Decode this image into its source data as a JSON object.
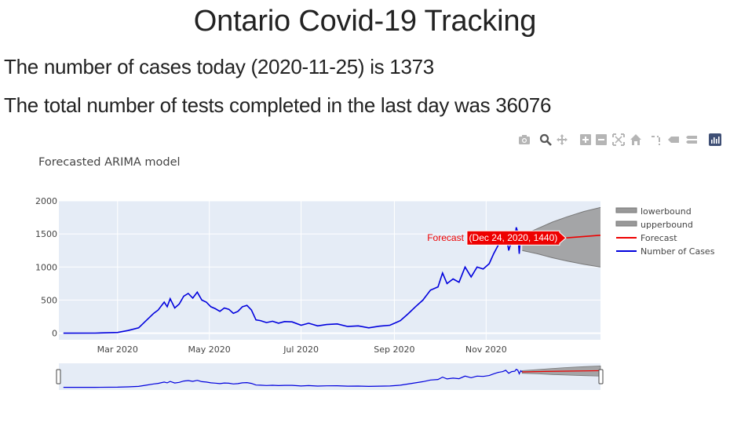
{
  "page": {
    "heading": "Ontario Covid-19 Tracking",
    "cases_line": "The number of cases today (2020-11-25) is 1373",
    "tests_line": "The total number of tests completed in the last day was 36076"
  },
  "modebar": {
    "icons": [
      "camera-icon",
      "zoom-icon",
      "pan-icon",
      "zoom-in-icon",
      "zoom-out-icon",
      "autoscale-icon",
      "reset-axes-icon",
      "spike-lines-icon",
      "hover-closest-icon",
      "hover-compare-icon",
      "plotly-logo-icon"
    ]
  },
  "colors": {
    "cases": "#0000dd",
    "forecast": "#ee0000",
    "band": "#999999",
    "plot_bg": "#e5ecf6"
  },
  "chart_data": {
    "type": "line",
    "title": "Forecasted ARIMA model",
    "xlabel": "",
    "ylabel": "",
    "xlim": [
      "2020-01-22",
      "2021-01-16"
    ],
    "ylim": [
      -100,
      2000
    ],
    "yticks": [
      0,
      500,
      1000,
      1500,
      2000
    ],
    "xticks": [
      {
        "date": "2020-03-01",
        "label": "Mar 2020"
      },
      {
        "date": "2020-05-01",
        "label": "May 2020"
      },
      {
        "date": "2020-07-01",
        "label": "Jul 2020"
      },
      {
        "date": "2020-09-01",
        "label": "Sep 2020"
      },
      {
        "date": "2020-11-01",
        "label": "Nov 2020"
      }
    ],
    "grid": true,
    "legend_position": "right",
    "legend": [
      "lowerbound",
      "upperbound",
      "Forecast",
      "Number of Cases"
    ],
    "series": [
      {
        "name": "Number of Cases",
        "x": [
          "2020-01-25",
          "2020-02-15",
          "2020-03-01",
          "2020-03-08",
          "2020-03-15",
          "2020-03-20",
          "2020-03-25",
          "2020-03-28",
          "2020-04-01",
          "2020-04-03",
          "2020-04-05",
          "2020-04-08",
          "2020-04-11",
          "2020-04-14",
          "2020-04-17",
          "2020-04-20",
          "2020-04-23",
          "2020-04-26",
          "2020-04-29",
          "2020-05-02",
          "2020-05-05",
          "2020-05-08",
          "2020-05-11",
          "2020-05-14",
          "2020-05-17",
          "2020-05-20",
          "2020-05-23",
          "2020-05-26",
          "2020-05-29",
          "2020-06-01",
          "2020-06-04",
          "2020-06-08",
          "2020-06-12",
          "2020-06-16",
          "2020-06-20",
          "2020-06-25",
          "2020-07-01",
          "2020-07-06",
          "2020-07-12",
          "2020-07-18",
          "2020-07-25",
          "2020-08-01",
          "2020-08-08",
          "2020-08-15",
          "2020-08-22",
          "2020-08-29",
          "2020-09-05",
          "2020-09-10",
          "2020-09-15",
          "2020-09-20",
          "2020-09-25",
          "2020-09-30",
          "2020-10-03",
          "2020-10-06",
          "2020-10-10",
          "2020-10-14",
          "2020-10-18",
          "2020-10-22",
          "2020-10-26",
          "2020-10-30",
          "2020-11-03",
          "2020-11-06",
          "2020-11-09",
          "2020-11-12",
          "2020-11-14",
          "2020-11-16",
          "2020-11-18",
          "2020-11-20",
          "2020-11-21",
          "2020-11-22",
          "2020-11-23",
          "2020-11-24",
          "2020-11-25"
        ],
        "y": [
          0,
          1,
          10,
          40,
          80,
          190,
          300,
          350,
          470,
          400,
          520,
          380,
          440,
          560,
          600,
          530,
          620,
          500,
          470,
          400,
          370,
          330,
          380,
          360,
          300,
          330,
          400,
          420,
          350,
          200,
          190,
          160,
          180,
          150,
          175,
          170,
          120,
          150,
          110,
          130,
          140,
          100,
          110,
          80,
          105,
          120,
          190,
          290,
          400,
          500,
          650,
          700,
          910,
          750,
          820,
          770,
          1000,
          850,
          1000,
          970,
          1050,
          1200,
          1330,
          1400,
          1520,
          1250,
          1400,
          1430,
          1600,
          1530,
          1200,
          1480,
          1373
        ]
      },
      {
        "name": "Forecast",
        "x": [
          "2020-11-25",
          "2020-12-10",
          "2020-12-24",
          "2021-01-16"
        ],
        "y": [
          1373,
          1410,
          1440,
          1480
        ]
      },
      {
        "name": "upperbound",
        "x": [
          "2020-11-25",
          "2020-12-05",
          "2020-12-15",
          "2020-12-25",
          "2021-01-05",
          "2021-01-16"
        ],
        "y": [
          1480,
          1580,
          1680,
          1760,
          1840,
          1900
        ]
      },
      {
        "name": "lowerbound",
        "x": [
          "2020-11-25",
          "2020-12-05",
          "2020-12-15",
          "2020-12-25",
          "2021-01-05",
          "2021-01-16"
        ],
        "y": [
          1250,
          1200,
          1140,
          1090,
          1040,
          1000
        ]
      }
    ],
    "hover": {
      "series": "Forecast",
      "date": "2020-12-24",
      "text": "(Dec 24, 2020, 1440)"
    }
  }
}
